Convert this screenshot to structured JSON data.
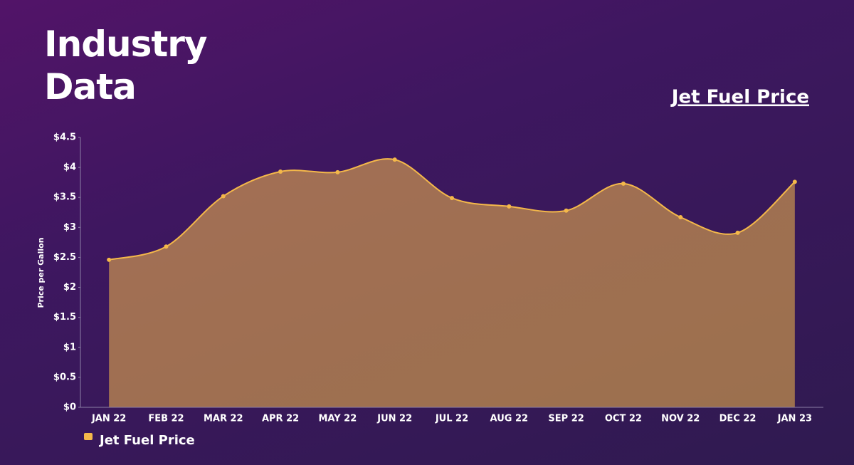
{
  "header": {
    "title": "Industry Data"
  },
  "chart_data": {
    "type": "area",
    "title": "Jet Fuel Price",
    "y_label": "Price per Gallon",
    "categories": [
      "JAN 22",
      "FEB 22",
      "MAR 22",
      "APR 22",
      "MAY 22",
      "JUN 22",
      "JUL 22",
      "AUG 22",
      "SEP 22",
      "OCT 22",
      "NOV 22",
      "DEC 22",
      "JAN 23"
    ],
    "series": [
      {
        "name": "Jet Fuel Price",
        "color": "#f4b84a",
        "values": [
          2.46,
          2.68,
          3.52,
          3.93,
          3.92,
          4.13,
          3.49,
          3.35,
          3.28,
          3.73,
          3.17,
          2.91,
          3.76
        ]
      }
    ],
    "ylim": [
      0,
      4.5
    ],
    "yticks": [
      {
        "value": 0,
        "label": "$0"
      },
      {
        "value": 0.5,
        "label": "$0.5"
      },
      {
        "value": 1,
        "label": "$1"
      },
      {
        "value": 1.5,
        "label": "$1.5"
      },
      {
        "value": 2,
        "label": "$2"
      },
      {
        "value": 2.5,
        "label": "$2.5"
      },
      {
        "value": 3,
        "label": "$3"
      },
      {
        "value": 3.5,
        "label": "$3.5"
      },
      {
        "value": 4,
        "label": "$4"
      },
      {
        "value": 4.5,
        "label": "$4.5"
      }
    ],
    "grid": false,
    "legend": "bottom-left"
  }
}
